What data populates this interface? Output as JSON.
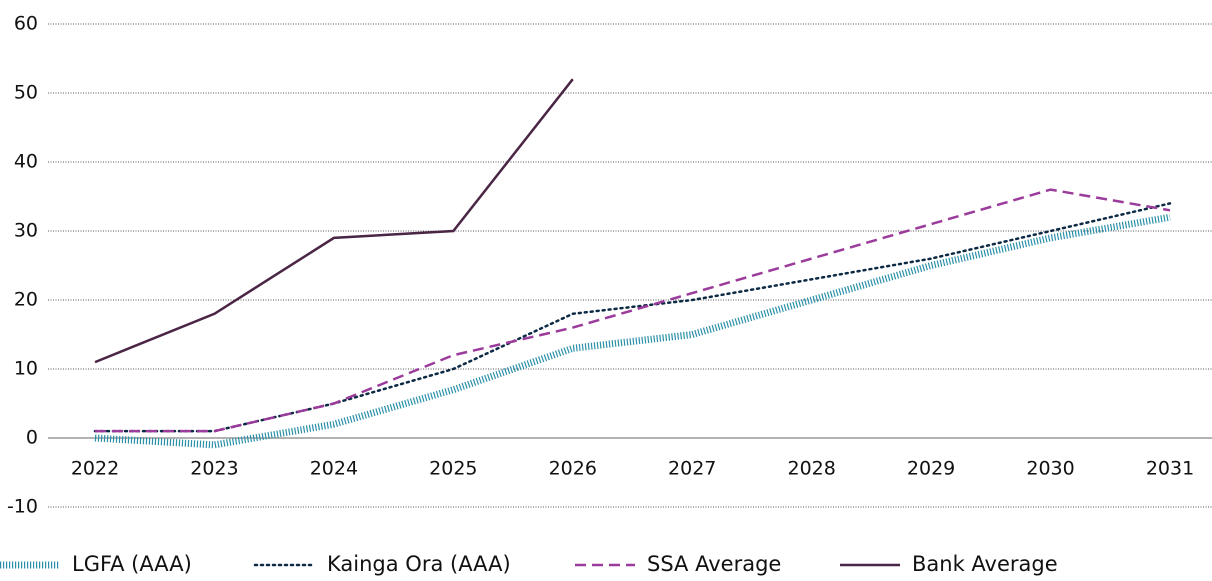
{
  "chart_data": {
    "type": "line",
    "categories": [
      "2022",
      "2023",
      "2024",
      "2025",
      "2026",
      "2027",
      "2028",
      "2029",
      "2030",
      "2031"
    ],
    "series": [
      {
        "name": "LGFA (AAA)",
        "color": "#2a8fa8",
        "style": "hatched",
        "values": [
          0,
          -1,
          2,
          7,
          13,
          15,
          20,
          25,
          29,
          32
        ]
      },
      {
        "name": "Kainga Ora (AAA)",
        "color": "#0d2a45",
        "style": "dotted",
        "values": [
          1,
          1,
          5,
          10,
          18,
          20,
          23,
          26,
          30,
          34
        ]
      },
      {
        "name": "SSA Average",
        "color": "#9b3b9b",
        "style": "dashed",
        "values": [
          1,
          1,
          5,
          12,
          16,
          21,
          26,
          31,
          36,
          33
        ]
      },
      {
        "name": "Bank Average",
        "color": "#4a2545",
        "style": "solid",
        "values": [
          11,
          18,
          29,
          30,
          52,
          null,
          null,
          null,
          null,
          null
        ]
      }
    ],
    "ylim": [
      -10,
      60
    ],
    "yticks": [
      -10,
      0,
      10,
      20,
      30,
      40,
      50,
      60
    ],
    "grid": true,
    "legend": "bottom"
  }
}
